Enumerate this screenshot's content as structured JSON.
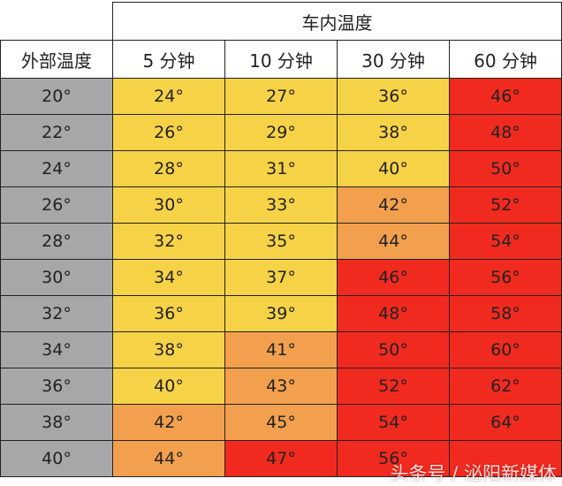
{
  "chart_data": {
    "type": "table",
    "group_header": "车内温度",
    "row_header": "外部温度",
    "columns": [
      "5 分钟",
      "10 分钟",
      "30 分钟",
      "60 分钟"
    ],
    "rows": [
      {
        "outside": "20°",
        "values": [
          "24°",
          "27°",
          "36°",
          "46°"
        ],
        "levels": [
          "yellow",
          "yellow",
          "yellow",
          "red"
        ]
      },
      {
        "outside": "22°",
        "values": [
          "26°",
          "29°",
          "38°",
          "48°"
        ],
        "levels": [
          "yellow",
          "yellow",
          "yellow",
          "red"
        ]
      },
      {
        "outside": "24°",
        "values": [
          "28°",
          "31°",
          "40°",
          "50°"
        ],
        "levels": [
          "yellow",
          "yellow",
          "yellow",
          "red"
        ]
      },
      {
        "outside": "26°",
        "values": [
          "30°",
          "33°",
          "42°",
          "52°"
        ],
        "levels": [
          "yellow",
          "yellow",
          "orange",
          "red"
        ]
      },
      {
        "outside": "28°",
        "values": [
          "32°",
          "35°",
          "44°",
          "54°"
        ],
        "levels": [
          "yellow",
          "yellow",
          "orange",
          "red"
        ]
      },
      {
        "outside": "30°",
        "values": [
          "34°",
          "37°",
          "46°",
          "56°"
        ],
        "levels": [
          "yellow",
          "yellow",
          "red",
          "red"
        ]
      },
      {
        "outside": "32°",
        "values": [
          "36°",
          "39°",
          "48°",
          "58°"
        ],
        "levels": [
          "yellow",
          "yellow",
          "red",
          "red"
        ]
      },
      {
        "outside": "34°",
        "values": [
          "38°",
          "41°",
          "50°",
          "60°"
        ],
        "levels": [
          "yellow",
          "orange",
          "red",
          "red"
        ]
      },
      {
        "outside": "36°",
        "values": [
          "40°",
          "43°",
          "52°",
          "62°"
        ],
        "levels": [
          "yellow",
          "orange",
          "red",
          "red"
        ]
      },
      {
        "outside": "38°",
        "values": [
          "42°",
          "45°",
          "54°",
          "64°"
        ],
        "levels": [
          "orange",
          "orange",
          "red",
          "red"
        ]
      },
      {
        "outside": "40°",
        "values": [
          "44°",
          "47°",
          "56°",
          ""
        ],
        "levels": [
          "orange",
          "red",
          "red",
          "red"
        ]
      }
    ],
    "colors": {
      "outside": "#a7a7a9",
      "yellow": "#f6d247",
      "orange": "#f2a04e",
      "red": "#f12a1f",
      "header": "#ffffff"
    }
  },
  "watermark": "头条号 / 泌阳新媒体"
}
